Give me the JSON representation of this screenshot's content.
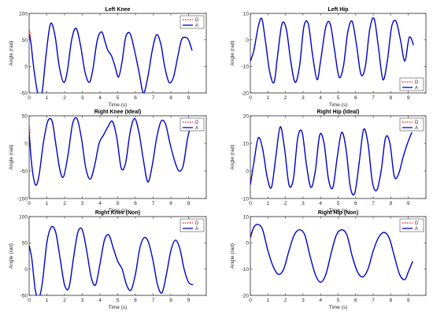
{
  "figure": {
    "panels": [
      {
        "title": "Left Knee"
      },
      {
        "title": "Left Hip"
      },
      {
        "title": "Right Knee (Ideal)"
      },
      {
        "title": "Right Hip (Ideal)"
      },
      {
        "title": "Right Knee (Non)"
      },
      {
        "title": "Right Hip (Non)"
      }
    ]
  },
  "chart_data": [
    {
      "type": "line",
      "title": "Left Knee",
      "xlabel": "Time (s)",
      "ylabel": "Angle (rad)",
      "xlim": [
        0,
        10
      ],
      "ylim": [
        -50,
        100
      ],
      "xticks": [
        0,
        1,
        2,
        3,
        4,
        5,
        6,
        7,
        8,
        9
      ],
      "yticks": [
        -50,
        0,
        50,
        100
      ],
      "legend_position": "top-right",
      "grid": false,
      "series": [
        {
          "name": "D",
          "color": "#ff0000",
          "dash": "dotted",
          "x": [
            0,
            0.08
          ],
          "y": [
            70,
            55
          ]
        },
        {
          "name": "A",
          "color": "#0000cc",
          "dash": "solid",
          "x": [
            0,
            0.1,
            0.25,
            0.45,
            0.6,
            0.75,
            0.95,
            1.2,
            1.45,
            1.7,
            1.95,
            2.15,
            2.4,
            2.65,
            2.9,
            3.15,
            3.4,
            3.6,
            3.85,
            4.1,
            4.3,
            4.45,
            4.65,
            4.85,
            5.05,
            5.25,
            5.45,
            5.7,
            5.95,
            6.2,
            6.45,
            6.7,
            6.95,
            7.2,
            7.45,
            7.65,
            7.9,
            8.15,
            8.4,
            8.6,
            8.8,
            9.0,
            9.2
          ],
          "y": [
            60,
            45,
            0,
            -45,
            -60,
            -45,
            20,
            80,
            60,
            0,
            -30,
            -10,
            50,
            72,
            40,
            -10,
            -30,
            -5,
            50,
            65,
            45,
            30,
            20,
            0,
            -20,
            10,
            55,
            62,
            30,
            -10,
            -50,
            -20,
            30,
            60,
            40,
            0,
            -30,
            -20,
            20,
            50,
            55,
            50,
            30
          ]
        }
      ]
    },
    {
      "type": "line",
      "title": "Left Hip",
      "xlabel": "Time (s)",
      "ylabel": "Angle (rad)",
      "xlim": [
        0,
        10
      ],
      "ylim": [
        -20,
        10
      ],
      "xticks": [
        0,
        1,
        2,
        3,
        4,
        5,
        6,
        7,
        8,
        9
      ],
      "yticks": [
        -20,
        -10,
        0,
        10
      ],
      "legend_position": "bottom-right",
      "grid": false,
      "series": [
        {
          "name": "D",
          "color": "#ff0000",
          "dash": "dotted",
          "x": [
            0,
            0.05
          ],
          "y": [
            -8,
            -7
          ]
        },
        {
          "name": "A",
          "color": "#0000cc",
          "dash": "solid",
          "x": [
            0,
            0.2,
            0.45,
            0.65,
            0.85,
            1.1,
            1.35,
            1.55,
            1.8,
            2.05,
            2.3,
            2.55,
            2.8,
            3.05,
            3.3,
            3.55,
            3.8,
            4.0,
            4.3,
            4.55,
            4.8,
            5.05,
            5.3,
            5.55,
            5.8,
            6.05,
            6.3,
            6.55,
            6.8,
            7.05,
            7.3,
            7.55,
            7.8,
            8.05,
            8.3,
            8.55,
            8.8,
            9.05,
            9.3
          ],
          "y": [
            -8,
            -4,
            5,
            8,
            0,
            -12,
            -16,
            -6,
            6,
            4,
            -8,
            -16,
            -10,
            5,
            6,
            -6,
            -15,
            -8,
            5,
            6,
            -4,
            -14,
            -10,
            3,
            7,
            -2,
            -13,
            -10,
            4,
            8,
            -3,
            -15,
            -8,
            5,
            7,
            0,
            -8,
            1,
            -2
          ]
        }
      ]
    },
    {
      "type": "line",
      "title": "Right Knee (Ideal)",
      "xlabel": "Time (s)",
      "ylabel": "Angle (rad)",
      "xlim": [
        0,
        10
      ],
      "ylim": [
        -100,
        50
      ],
      "xticks": [
        0,
        1,
        2,
        3,
        4,
        5,
        6,
        7,
        8,
        9
      ],
      "yticks": [
        -100,
        -50,
        0,
        50
      ],
      "legend_position": "top-right",
      "grid": false,
      "series": [
        {
          "name": "D",
          "color": "#ff0000",
          "dash": "dotted",
          "x": [
            0,
            0.06
          ],
          "y": [
            30,
            20
          ]
        },
        {
          "name": "A",
          "color": "#0000cc",
          "dash": "solid",
          "x": [
            0,
            0.15,
            0.35,
            0.55,
            0.8,
            1.05,
            1.3,
            1.5,
            1.75,
            1.95,
            2.2,
            2.45,
            2.7,
            2.95,
            3.2,
            3.45,
            3.7,
            3.95,
            4.2,
            4.45,
            4.7,
            4.95,
            5.2,
            5.45,
            5.7,
            5.95,
            6.2,
            6.45,
            6.7,
            6.95,
            7.2,
            7.45,
            7.7,
            7.95,
            8.2,
            8.45,
            8.7,
            8.95,
            9.2
          ],
          "y": [
            20,
            -40,
            -75,
            -60,
            0,
            40,
            40,
            0,
            -50,
            -60,
            -20,
            35,
            45,
            10,
            -45,
            -65,
            -40,
            0,
            15,
            30,
            40,
            10,
            -45,
            -35,
            20,
            45,
            20,
            -30,
            -70,
            -40,
            10,
            40,
            35,
            0,
            -30,
            -50,
            -40,
            10,
            40
          ]
        }
      ]
    },
    {
      "type": "line",
      "title": "Right Hip (Ideal)",
      "xlabel": "Time (s)",
      "ylabel": "Angle (rad)",
      "xlim": [
        0,
        10
      ],
      "ylim": [
        -10,
        20
      ],
      "xticks": [
        0,
        1,
        2,
        3,
        4,
        5,
        6,
        7,
        8,
        9
      ],
      "yticks": [
        -10,
        0,
        10,
        20
      ],
      "legend_position": "top-right",
      "grid": false,
      "series": [
        {
          "name": "D",
          "color": "#ff0000",
          "dash": "dotted",
          "x": [
            0,
            0.05
          ],
          "y": [
            -5,
            -3
          ]
        },
        {
          "name": "A",
          "color": "#0000cc",
          "dash": "solid",
          "x": [
            0,
            0.2,
            0.45,
            0.7,
            0.95,
            1.2,
            1.45,
            1.7,
            1.95,
            2.2,
            2.45,
            2.7,
            2.95,
            3.2,
            3.45,
            3.7,
            3.95,
            4.2,
            4.45,
            4.7,
            4.95,
            5.2,
            5.45,
            5.7,
            5.95,
            6.2,
            6.45,
            6.7,
            6.95,
            7.2,
            7.45,
            7.7,
            7.95,
            8.2,
            8.45,
            8.7,
            8.95,
            9.2
          ],
          "y": [
            -5,
            3,
            12,
            8,
            -2,
            -6,
            5,
            16,
            8,
            -5,
            -3,
            12,
            14,
            2,
            -6,
            0,
            13,
            10,
            -3,
            -6,
            5,
            14,
            8,
            -6,
            -8,
            3,
            15,
            10,
            -4,
            -7,
            0,
            12,
            10,
            -2,
            -1,
            5,
            10,
            14
          ]
        }
      ]
    },
    {
      "type": "line",
      "title": "Right Knee (Non)",
      "xlabel": "Time (s)",
      "ylabel": "Angle (rad)",
      "xlim": [
        0,
        10
      ],
      "ylim": [
        -50,
        100
      ],
      "xticks": [
        0,
        1,
        2,
        3,
        4,
        5,
        6,
        7,
        8,
        9
      ],
      "yticks": [
        -50,
        0,
        50,
        100
      ],
      "legend_position": "top-right",
      "grid": false,
      "series": [
        {
          "name": "D",
          "color": "#ff0000",
          "dash": "dotted",
          "x": [
            0,
            0.06
          ],
          "y": [
            45,
            35
          ]
        },
        {
          "name": "A",
          "color": "#0000cc",
          "dash": "solid",
          "x": [
            0,
            0.15,
            0.35,
            0.55,
            0.75,
            1.0,
            1.25,
            1.5,
            1.75,
            2.0,
            2.25,
            2.5,
            2.75,
            3.0,
            3.25,
            3.5,
            3.75,
            4.0,
            4.25,
            4.5,
            4.75,
            5.0,
            5.25,
            5.5,
            5.75,
            6.0,
            6.25,
            6.5,
            6.75,
            7.0,
            7.25,
            7.5,
            7.75,
            8.0,
            8.25,
            8.5,
            8.75,
            9.0,
            9.25
          ],
          "y": [
            45,
            20,
            -40,
            -55,
            -25,
            50,
            80,
            70,
            20,
            -30,
            -35,
            20,
            70,
            75,
            35,
            -15,
            -30,
            10,
            55,
            65,
            40,
            15,
            0,
            -30,
            -40,
            -10,
            40,
            60,
            50,
            15,
            -30,
            -45,
            -10,
            35,
            55,
            40,
            0,
            -25,
            -30
          ]
        }
      ]
    },
    {
      "type": "line",
      "title": "Right Hip (Non)",
      "xlabel": "Time (s)",
      "ylabel": "Angle (rad)",
      "xlim": [
        0,
        10
      ],
      "ylim": [
        -20,
        10
      ],
      "xticks": [
        0,
        1,
        2,
        3,
        4,
        5,
        6,
        7,
        8,
        9
      ],
      "yticks": [
        -20,
        -10,
        0,
        10
      ],
      "legend_position": "top-right",
      "grid": false,
      "series": [
        {
          "name": "D",
          "color": "#ff0000",
          "dash": "dotted",
          "x": [
            0,
            0.05
          ],
          "y": [
            2,
            4
          ]
        },
        {
          "name": "A",
          "color": "#0000cc",
          "dash": "solid",
          "x": [
            0,
            0.2,
            0.45,
            0.7,
            1.0,
            1.3,
            1.6,
            1.9,
            2.2,
            2.5,
            2.8,
            3.1,
            3.4,
            3.7,
            4.0,
            4.3,
            4.6,
            4.9,
            5.2,
            5.5,
            5.8,
            6.1,
            6.4,
            6.7,
            7.0,
            7.3,
            7.6,
            7.9,
            8.2,
            8.5,
            8.8,
            9.0,
            9.25
          ],
          "y": [
            2,
            6,
            7,
            5,
            -3,
            -9,
            -12,
            -10,
            -3,
            3,
            5,
            3,
            -5,
            -12,
            -15,
            -12,
            -4,
            3,
            5,
            3,
            -5,
            -11,
            -13,
            -10,
            -3,
            2,
            4,
            2,
            -5,
            -12,
            -14,
            -11,
            -7
          ]
        }
      ]
    }
  ]
}
